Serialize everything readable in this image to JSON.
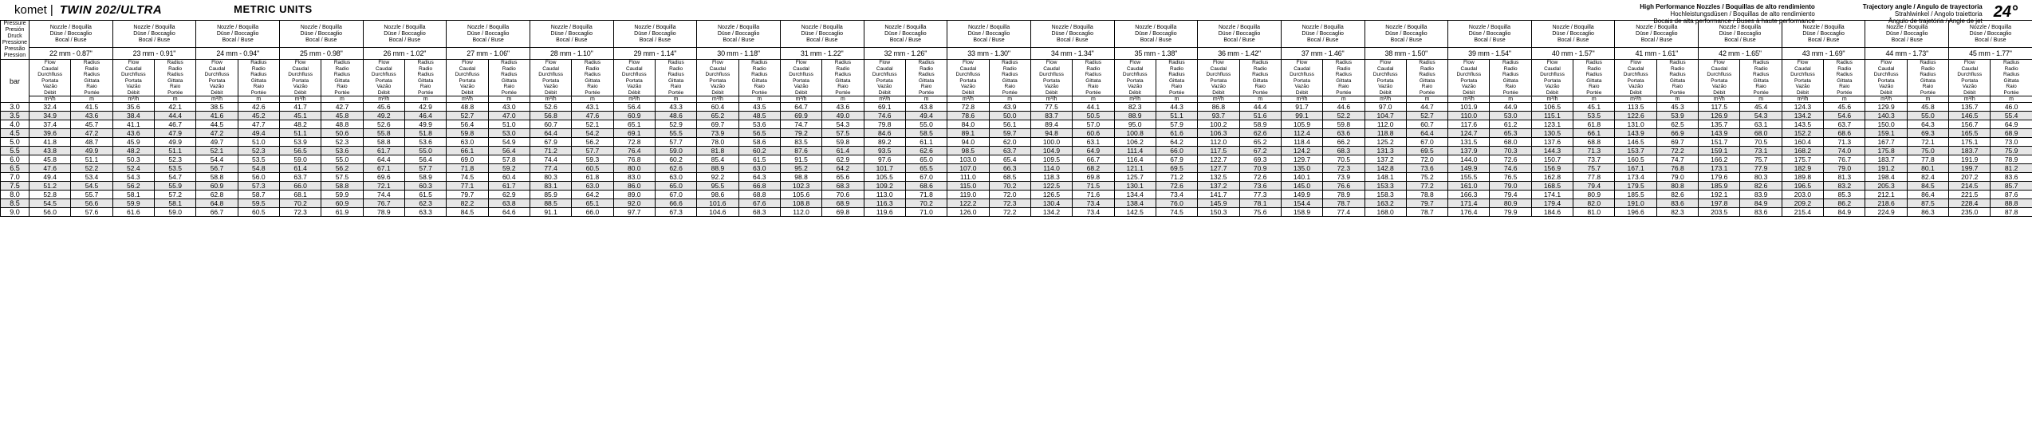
{
  "header": {
    "brand": "komet",
    "model": "TWIN 202/ULTRA",
    "units": "METRIC UNITS",
    "hpn": [
      "High Performance Nozzles / Boquillas de alto rendimiento",
      "Hochleistungsdüsen / Boquillas de alto rendimiento",
      "Bocais de alta performance / Buses à haute performance"
    ],
    "traj_labels": [
      "Trajectory angle / Angulo de trayectoria",
      "Strahlwinkel / Angolo traiettoria",
      "Ângulo de trajetória / Angle de jet"
    ],
    "traj_angle": "24°"
  },
  "labels": {
    "nozzle": [
      "Nozzle / Boquilla",
      "Düse / Boccaglio",
      "Bocal / Buse"
    ],
    "pressure": [
      "Pressure",
      "Presión",
      "Druck",
      "Pressione",
      "Pressão",
      "Pression"
    ],
    "bar": "bar",
    "flow": [
      "Flow",
      "Caudal",
      "Durchfluss",
      "Portata",
      "Vazão",
      "Débit"
    ],
    "radius": [
      "Radius",
      "Radio",
      "Radius",
      "Gittata",
      "Raio",
      "Portée"
    ],
    "flow_unit": "m³/h",
    "radius_unit": "m"
  },
  "sizes": [
    "22 mm - 0.87\"",
    "23 mm - 0.91\"",
    "24 mm - 0.94\"",
    "25 mm - 0.98\"",
    "26 mm - 1.02\"",
    "27 mm - 1.06\"",
    "28 mm - 1.10\"",
    "29 mm - 1.14\"",
    "30 mm - 1.18\"",
    "31 mm - 1.22\"",
    "32 mm - 1.26\"",
    "33 mm - 1.30\"",
    "34 mm - 1.34\"",
    "35 mm - 1.38\"",
    "36 mm - 1.42\"",
    "37 mm - 1.46\"",
    "38 mm - 1.50\"",
    "39 mm - 1.54\"",
    "40 mm - 1.57\"",
    "41 mm - 1.61\"",
    "42 mm - 1.65\"",
    "43 mm - 1.69\"",
    "44 mm - 1.73\"",
    "45 mm - 1.77\""
  ],
  "pressures": [
    "3.0",
    "3.5",
    "4.0",
    "4.5",
    "5.0",
    "5.5",
    "6.0",
    "6.5",
    "7.0",
    "7.5",
    "8.0",
    "8.5",
    "9.0"
  ],
  "rows": [
    [
      "32.4",
      "41.5",
      "35.6",
      "42.1",
      "38.5",
      "42.6",
      "41.7",
      "42.7",
      "45.6",
      "42.9",
      "48.8",
      "43.0",
      "52.6",
      "43.1",
      "56.4",
      "43.3",
      "60.4",
      "43.5",
      "64.7",
      "43.6",
      "69.1",
      "43.8",
      "72.8",
      "43.9",
      "77.5",
      "44.1",
      "82.3",
      "44.3",
      "86.8",
      "44.4",
      "91.7",
      "44.6",
      "97.0",
      "44.7",
      "101.9",
      "44.9",
      "106.5",
      "45.1",
      "113.5",
      "45.3",
      "117.5",
      "45.4",
      "124.3",
      "45.6",
      "129.9",
      "45.8",
      "135.7",
      "46.0"
    ],
    [
      "34.9",
      "43.6",
      "38.4",
      "44.4",
      "41.6",
      "45.2",
      "45.1",
      "45.8",
      "49.2",
      "46.4",
      "52.7",
      "47.0",
      "56.8",
      "47.6",
      "60.9",
      "48.6",
      "65.2",
      "48.5",
      "69.9",
      "49.0",
      "74.6",
      "49.4",
      "78.6",
      "50.0",
      "83.7",
      "50.5",
      "88.9",
      "51.1",
      "93.7",
      "51.6",
      "99.1",
      "52.2",
      "104.7",
      "52.7",
      "110.0",
      "53.0",
      "115.1",
      "53.5",
      "122.6",
      "53.9",
      "126.9",
      "54.3",
      "134.2",
      "54.6",
      "140.3",
      "55.0",
      "146.5",
      "55.4"
    ],
    [
      "37.4",
      "45.7",
      "41.1",
      "46.7",
      "44.5",
      "47.7",
      "48.2",
      "48.8",
      "52.6",
      "49.9",
      "56.4",
      "51.0",
      "60.7",
      "52.1",
      "65.1",
      "52.9",
      "69.7",
      "53.6",
      "74.7",
      "54.3",
      "79.8",
      "55.0",
      "84.0",
      "56.1",
      "89.4",
      "57.0",
      "95.0",
      "57.9",
      "100.2",
      "58.9",
      "105.9",
      "59.8",
      "112.0",
      "60.7",
      "117.6",
      "61.2",
      "123.1",
      "61.8",
      "131.0",
      "62.5",
      "135.7",
      "63.1",
      "143.5",
      "63.7",
      "150.0",
      "64.3",
      "156.7",
      "64.9"
    ],
    [
      "39.6",
      "47.2",
      "43.6",
      "47.9",
      "47.2",
      "49.4",
      "51.1",
      "50.6",
      "55.8",
      "51.8",
      "59.8",
      "53.0",
      "64.4",
      "54.2",
      "69.1",
      "55.5",
      "73.9",
      "56.5",
      "79.2",
      "57.5",
      "84.6",
      "58.5",
      "89.1",
      "59.7",
      "94.8",
      "60.6",
      "100.8",
      "61.6",
      "106.3",
      "62.6",
      "112.4",
      "63.6",
      "118.8",
      "64.4",
      "124.7",
      "65.3",
      "130.5",
      "66.1",
      "143.9",
      "66.9",
      "143.9",
      "68.0",
      "152.2",
      "68.6",
      "159.1",
      "69.3",
      "165.5",
      "68.9"
    ],
    [
      "41.8",
      "48.7",
      "45.9",
      "49.9",
      "49.7",
      "51.0",
      "53.9",
      "52.3",
      "58.8",
      "53.6",
      "63.0",
      "54.9",
      "67.9",
      "56.2",
      "72.8",
      "57.7",
      "78.0",
      "58.6",
      "83.5",
      "59.8",
      "89.2",
      "61.1",
      "94.0",
      "62.0",
      "100.0",
      "63.1",
      "106.2",
      "64.2",
      "112.0",
      "65.2",
      "118.4",
      "66.2",
      "125.2",
      "67.0",
      "131.5",
      "68.0",
      "137.6",
      "68.8",
      "146.5",
      "69.7",
      "151.7",
      "70.5",
      "160.4",
      "71.3",
      "167.7",
      "72.1",
      "175.1",
      "73.0"
    ],
    [
      "43.8",
      "49.9",
      "48.2",
      "51.1",
      "52.1",
      "52.3",
      "56.5",
      "53.6",
      "61.7",
      "55.0",
      "66.1",
      "56.4",
      "71.2",
      "57.7",
      "76.4",
      "59.0",
      "81.8",
      "60.2",
      "87.6",
      "61.4",
      "93.5",
      "62.6",
      "98.5",
      "63.7",
      "104.9",
      "64.9",
      "111.4",
      "66.0",
      "117.5",
      "67.2",
      "124.2",
      "68.3",
      "131.3",
      "69.5",
      "137.9",
      "70.3",
      "144.3",
      "71.3",
      "153.7",
      "72.2",
      "159.1",
      "73.1",
      "168.2",
      "74.0",
      "175.8",
      "75.0",
      "183.7",
      "75.9"
    ],
    [
      "45.8",
      "51.1",
      "50.3",
      "52.3",
      "54.4",
      "53.5",
      "59.0",
      "55.0",
      "64.4",
      "56.4",
      "69.0",
      "57.8",
      "74.4",
      "59.3",
      "76.8",
      "60.2",
      "85.4",
      "61.5",
      "91.5",
      "62.9",
      "97.6",
      "65.0",
      "103.0",
      "65.4",
      "109.5",
      "66.7",
      "116.4",
      "67.9",
      "122.7",
      "69.3",
      "129.7",
      "70.5",
      "137.2",
      "72.0",
      "144.0",
      "72.6",
      "150.7",
      "73.7",
      "160.5",
      "74.7",
      "166.2",
      "75.7",
      "175.7",
      "76.7",
      "183.7",
      "77.8",
      "191.9",
      "78.9"
    ],
    [
      "47.6",
      "52.2",
      "52.4",
      "53.5",
      "56.7",
      "54.8",
      "61.4",
      "56.2",
      "67.1",
      "57.7",
      "71.8",
      "59.2",
      "77.4",
      "60.5",
      "80.0",
      "62.6",
      "88.9",
      "63.0",
      "95.2",
      "64.2",
      "101.7",
      "65.5",
      "107.0",
      "66.3",
      "114.0",
      "68.2",
      "121.1",
      "69.5",
      "127.7",
      "70.9",
      "135.0",
      "72.3",
      "142.8",
      "73.6",
      "149.9",
      "74.6",
      "156.9",
      "75.7",
      "167.1",
      "76.8",
      "173.1",
      "77.9",
      "182.9",
      "79.0",
      "191.2",
      "80.1",
      "199.7",
      "81.2"
    ],
    [
      "49.4",
      "53.4",
      "54.3",
      "54.7",
      "58.8",
      "56.0",
      "63.7",
      "57.5",
      "69.6",
      "58.9",
      "74.5",
      "60.4",
      "80.3",
      "61.8",
      "83.0",
      "63.0",
      "92.2",
      "64.3",
      "98.8",
      "65.6",
      "105.5",
      "67.0",
      "111.0",
      "68.5",
      "118.3",
      "69.8",
      "125.7",
      "71.2",
      "132.5",
      "72.6",
      "140.1",
      "73.9",
      "148.1",
      "75.2",
      "155.5",
      "76.5",
      "162.8",
      "77.8",
      "173.4",
      "79.0",
      "179.6",
      "80.3",
      "189.8",
      "81.3",
      "198.4",
      "82.4",
      "207.2",
      "83.6"
    ],
    [
      "51.2",
      "54.5",
      "56.2",
      "55.9",
      "60.9",
      "57.3",
      "66.0",
      "58.8",
      "72.1",
      "60.3",
      "77.1",
      "61.7",
      "83.1",
      "63.0",
      "86.0",
      "65.0",
      "95.5",
      "66.8",
      "102.3",
      "68.3",
      "109.2",
      "68.6",
      "115.0",
      "70.2",
      "122.5",
      "71.5",
      "130.1",
      "72.6",
      "137.2",
      "73.6",
      "145.0",
      "76.6",
      "153.3",
      "77.2",
      "161.0",
      "79.0",
      "168.5",
      "79.4",
      "179.5",
      "80.8",
      "185.9",
      "82.6",
      "196.5",
      "83.2",
      "205.3",
      "84.5",
      "214.5",
      "85.7"
    ],
    [
      "52.8",
      "55.7",
      "58.1",
      "57.2",
      "62.8",
      "58.7",
      "68.1",
      "59.9",
      "74.4",
      "61.5",
      "79.7",
      "62.9",
      "85.9",
      "64.2",
      "89.0",
      "67.0",
      "98.6",
      "68.8",
      "105.6",
      "70.6",
      "113.0",
      "71.8",
      "119.0",
      "72.0",
      "126.5",
      "71.6",
      "134.4",
      "73.4",
      "141.7",
      "77.3",
      "149.9",
      "78.9",
      "158.3",
      "78.8",
      "166.3",
      "79.4",
      "174.1",
      "80.9",
      "185.5",
      "82.6",
      "192.1",
      "83.9",
      "203.0",
      "85.3",
      "212.1",
      "86.4",
      "221.5",
      "87.6"
    ],
    [
      "54.5",
      "56.6",
      "59.9",
      "58.1",
      "64.8",
      "59.5",
      "70.2",
      "60.9",
      "76.7",
      "62.3",
      "82.2",
      "63.8",
      "88.5",
      "65.1",
      "92.0",
      "66.6",
      "101.6",
      "67.6",
      "108.8",
      "68.9",
      "116.3",
      "70.2",
      "122.2",
      "72.3",
      "130.4",
      "73.4",
      "138.4",
      "76.0",
      "145.9",
      "78.1",
      "154.4",
      "78.7",
      "163.2",
      "79.7",
      "171.4",
      "80.9",
      "179.4",
      "82.0",
      "191.0",
      "83.6",
      "197.8",
      "84.9",
      "209.2",
      "86.2",
      "218.6",
      "87.5",
      "228.4",
      "88.8"
    ],
    [
      "56.0",
      "57.6",
      "61.6",
      "59.0",
      "66.7",
      "60.5",
      "72.3",
      "61.9",
      "78.9",
      "63.3",
      "84.5",
      "64.6",
      "91.1",
      "66.0",
      "97.7",
      "67.3",
      "104.6",
      "68.3",
      "112.0",
      "69.8",
      "119.6",
      "71.0",
      "126.0",
      "72.2",
      "134.2",
      "73.4",
      "142.5",
      "74.5",
      "150.3",
      "75.6",
      "158.9",
      "77.4",
      "168.0",
      "78.7",
      "176.4",
      "79.9",
      "184.6",
      "81.0",
      "196.6",
      "82.3",
      "203.5",
      "83.6",
      "215.4",
      "84.9",
      "224.9",
      "86.3",
      "235.0",
      "87.8"
    ]
  ]
}
